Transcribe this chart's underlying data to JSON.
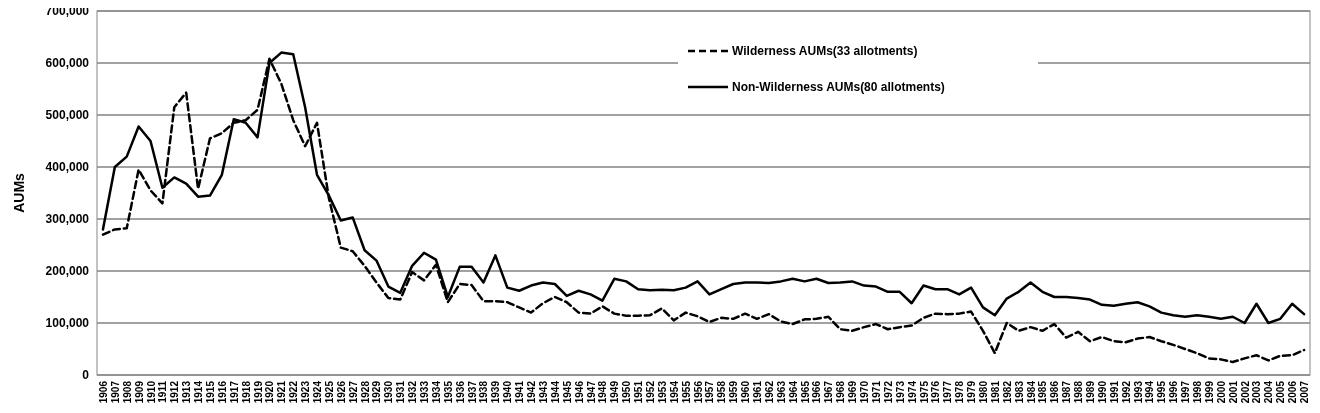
{
  "chart_data": {
    "type": "line",
    "ylabel": "AUMs",
    "categories": [
      "1906",
      "1907",
      "1908",
      "1909",
      "1910",
      "1911",
      "1912",
      "1913",
      "1914",
      "1915",
      "1916",
      "1917",
      "1918",
      "1919",
      "1920",
      "1921",
      "1922",
      "1923",
      "1924",
      "1925",
      "1926",
      "1927",
      "1928",
      "1929",
      "1930",
      "1931",
      "1932",
      "1933",
      "1934",
      "1935",
      "1936",
      "1937",
      "1938",
      "1939",
      "1940",
      "1941",
      "1942",
      "1943",
      "1944",
      "1945",
      "1946",
      "1947",
      "1948",
      "1949",
      "1950",
      "1951",
      "1952",
      "1953",
      "1954",
      "1955",
      "1956",
      "1957",
      "1958",
      "1959",
      "1960",
      "1961",
      "1962",
      "1963",
      "1964",
      "1965",
      "1966",
      "1967",
      "1968",
      "1969",
      "1970",
      "1971",
      "1972",
      "1973",
      "1974",
      "1975",
      "1976",
      "1977",
      "1978",
      "1979",
      "1980",
      "1981",
      "1982",
      "1983",
      "1984",
      "1985",
      "1986",
      "1987",
      "1988",
      "1989",
      "1990",
      "1991",
      "1992",
      "1993",
      "1994",
      "1995",
      "1996",
      "1997",
      "1998",
      "1999",
      "2000",
      "2001",
      "2002",
      "2003",
      "2004",
      "2005",
      "2006",
      "2007"
    ],
    "series": [
      {
        "name": "Wilderness AUMs(33 allotments)",
        "color": "#000000",
        "line_style": "dashed",
        "values": [
          270000,
          280000,
          282000,
          395000,
          355000,
          330000,
          515000,
          543000,
          358000,
          455000,
          465000,
          485000,
          490000,
          510000,
          608000,
          560000,
          490000,
          440000,
          485000,
          340000,
          245000,
          238000,
          210000,
          178000,
          148000,
          145000,
          198000,
          182000,
          212000,
          140000,
          175000,
          173000,
          142000,
          142000,
          140000,
          130000,
          120000,
          138000,
          150000,
          140000,
          120000,
          118000,
          132000,
          118000,
          114000,
          114000,
          115000,
          128000,
          105000,
          120000,
          113000,
          102000,
          110000,
          108000,
          118000,
          108000,
          117000,
          103000,
          98000,
          107000,
          108000,
          112000,
          88000,
          85000,
          92000,
          98000,
          88000,
          92000,
          95000,
          110000,
          118000,
          117000,
          118000,
          122000,
          85000,
          42000,
          100000,
          85000,
          92000,
          85000,
          98000,
          72000,
          83000,
          65000,
          73000,
          65000,
          63000,
          70000,
          73000,
          65000,
          58000,
          50000,
          42000,
          32000,
          30000,
          25000,
          32000,
          38000,
          28000,
          37000,
          38000,
          48000
        ]
      },
      {
        "name": "Non-Wilderness AUMs(80 allotments)",
        "color": "#000000",
        "line_style": "solid",
        "values": [
          280000,
          400000,
          420000,
          478000,
          450000,
          360000,
          380000,
          368000,
          343000,
          345000,
          385000,
          492000,
          485000,
          457000,
          600000,
          620000,
          617000,
          515000,
          385000,
          345000,
          297000,
          303000,
          240000,
          220000,
          170000,
          158000,
          210000,
          235000,
          222000,
          150000,
          208000,
          208000,
          178000,
          230000,
          168000,
          162000,
          172000,
          178000,
          175000,
          152000,
          162000,
          155000,
          143000,
          185000,
          180000,
          165000,
          163000,
          164000,
          163000,
          168000,
          180000,
          155000,
          165000,
          175000,
          178000,
          178000,
          177000,
          180000,
          185000,
          180000,
          185000,
          177000,
          178000,
          180000,
          172000,
          170000,
          160000,
          160000,
          138000,
          172000,
          165000,
          165000,
          155000,
          168000,
          130000,
          115000,
          147000,
          160000,
          178000,
          160000,
          150000,
          150000,
          148000,
          145000,
          135000,
          133000,
          137000,
          140000,
          132000,
          120000,
          115000,
          112000,
          115000,
          112000,
          108000,
          112000,
          100000,
          137000,
          100000,
          108000,
          137000,
          117000
        ]
      }
    ],
    "ylim": [
      0,
      700000
    ],
    "yticks": [
      {
        "value": 0,
        "label": "0"
      },
      {
        "value": 100000,
        "label": "100,000"
      },
      {
        "value": 200000,
        "label": "200,000"
      },
      {
        "value": 300000,
        "label": "300,000"
      },
      {
        "value": 400000,
        "label": "400,000"
      },
      {
        "value": 500000,
        "label": "500,000"
      },
      {
        "value": 600000,
        "label": "600,000"
      },
      {
        "value": 700000,
        "label": "700,000"
      }
    ],
    "grid": "y",
    "legend": "top right",
    "marker": "none"
  }
}
